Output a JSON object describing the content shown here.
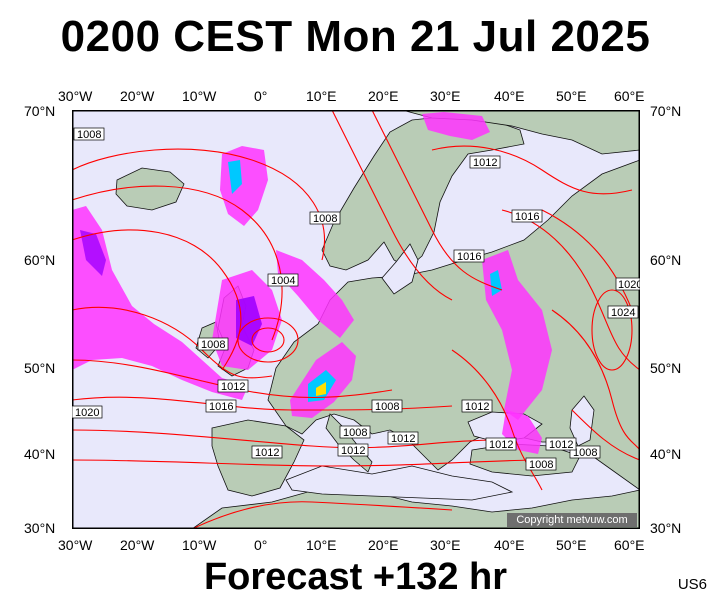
{
  "title": "0200 CEST Mon 21 Jul 2025",
  "footer": "Forecast +132 hr",
  "model_code": "US6",
  "copyright": "Copyright metvuw.com",
  "lon_ticks": [
    "30°W",
    "20°W",
    "10°W",
    "0°",
    "10°E",
    "20°E",
    "30°E",
    "40°E",
    "50°E",
    "60°E"
  ],
  "lat_ticks": [
    "70°N",
    "60°N",
    "50°N",
    "40°N",
    "30°N"
  ],
  "isobar_labels": [
    "1008",
    "1012",
    "1016",
    "1008",
    "1004",
    "1008",
    "1012",
    "1016",
    "1020",
    "1012",
    "1008",
    "1012",
    "1012",
    "1008",
    "1012",
    "1012",
    "1008",
    "1008",
    "1012",
    "1016",
    "1024",
    "1020"
  ],
  "colors": {
    "sea": "#e8e8fb",
    "land": "#b9ccb6",
    "isobar": "#ff0000",
    "coast": "#000000",
    "rain_light": "#ff33ff",
    "rain_medium": "#a000ff",
    "rain_heavy": "#00c8ff",
    "rain_extreme": "#ffe000"
  }
}
